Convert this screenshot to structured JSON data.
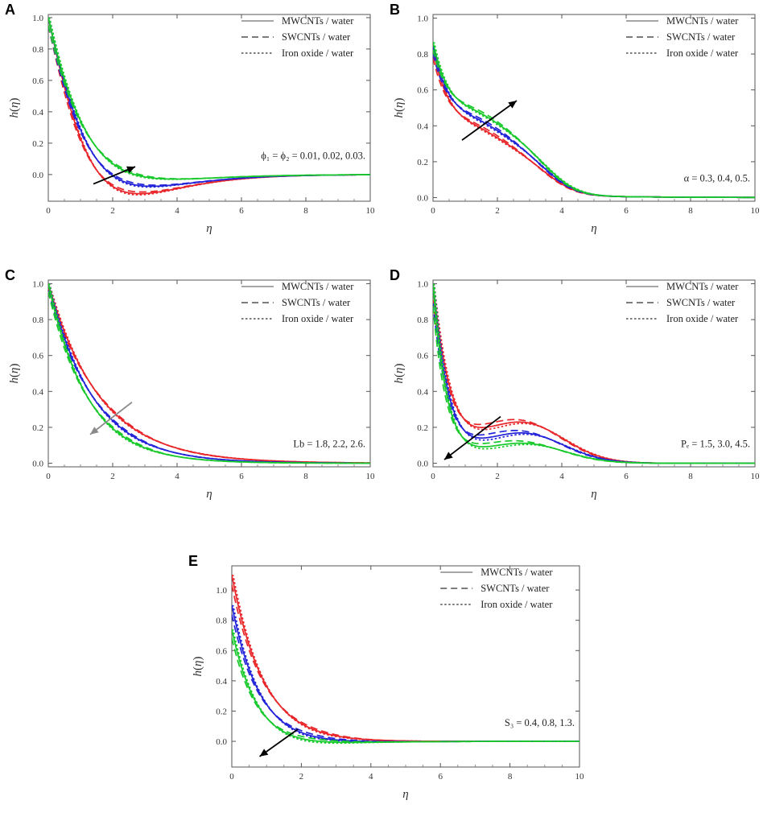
{
  "figure": {
    "legend": [
      "MWCNTs / water",
      "SWCNTs / water",
      "Iron oxide / water"
    ],
    "colors": {
      "red": "#e8262a",
      "blue": "#2323d8",
      "green": "#18c92b",
      "arrow_black": "#000000",
      "arrow_gray": "#8a8a8a"
    }
  },
  "chart_data": [
    {
      "panel": "A",
      "type": "line",
      "xlabel": "η",
      "ylabel": "h(η)",
      "ylabel_main": "h",
      "ylabel_open": "(",
      "ylabel_var": "η",
      "ylabel_close": ")",
      "xlim": [
        0,
        10
      ],
      "ylim": [
        -0.17,
        1.02
      ],
      "xticks": [
        "0",
        "2",
        "4",
        "6",
        "8",
        "10"
      ],
      "yticks": [
        "0.0",
        "0.2",
        "0.4",
        "0.6",
        "0.8",
        "1.0"
      ],
      "legend": [
        "MWCNTs / water",
        "SWCNTs / water",
        "Iron oxide / water"
      ],
      "annotation": "ϕ₁ = ϕ₂ = 0.01, 0.02, 0.03.",
      "arrow": {
        "from": [
          1.4,
          -0.06
        ],
        "to": [
          2.7,
          0.05
        ],
        "color": "#000000"
      },
      "model": {
        "type": "damped",
        "k": [
          1.05,
          1.0,
          0.95
        ],
        "a": [
          0.85,
          0.55,
          0.28
        ]
      },
      "series_colors": [
        "#e8262a",
        "#2323d8",
        "#18c92b"
      ]
    },
    {
      "panel": "B",
      "type": "line",
      "xlabel": "η",
      "ylabel": "h(η)",
      "ylabel_main": "h",
      "ylabel_open": "(",
      "ylabel_var": "η",
      "ylabel_close": ")",
      "xlim": [
        0,
        10
      ],
      "ylim": [
        -0.02,
        1.02
      ],
      "xticks": [
        "0",
        "2",
        "4",
        "6",
        "8",
        "10"
      ],
      "yticks": [
        "0.0",
        "0.2",
        "0.4",
        "0.6",
        "0.8",
        "1.0"
      ],
      "legend": [
        "MWCNTs / water",
        "SWCNTs / water",
        "Iron oxide / water"
      ],
      "annotation": "α = 0.3, 0.4, 0.5.",
      "arrow": {
        "from": [
          0.9,
          0.32
        ],
        "to": [
          2.6,
          0.54
        ],
        "color": "#000000"
      },
      "model": {
        "type": "hump",
        "base": [
          0.3,
          0.34,
          0.38
        ],
        "amp": [
          0.16,
          0.19,
          0.22
        ]
      },
      "series_colors": [
        "#e8262a",
        "#2323d8",
        "#18c92b"
      ]
    },
    {
      "panel": "C",
      "type": "line",
      "xlabel": "η",
      "ylabel": "h(η)",
      "ylabel_main": "h",
      "ylabel_open": "(",
      "ylabel_var": "η",
      "ylabel_close": ")",
      "xlim": [
        0,
        10
      ],
      "ylim": [
        -0.02,
        1.02
      ],
      "xticks": [
        "0",
        "2",
        "4",
        "6",
        "8",
        "10"
      ],
      "yticks": [
        "0.0",
        "0.2",
        "0.4",
        "0.6",
        "0.8",
        "1.0"
      ],
      "legend": [
        "MWCNTs / water",
        "SWCNTs / water",
        "Iron oxide / water"
      ],
      "annotation": "Lb = 1.8, 2.2, 2.6.",
      "arrow": {
        "from": [
          2.6,
          0.34
        ],
        "to": [
          1.3,
          0.16
        ],
        "color": "#8a8a8a"
      },
      "model": {
        "type": "decay",
        "k": [
          0.62,
          0.72,
          0.82
        ]
      },
      "series_colors": [
        "#e8262a",
        "#2323d8",
        "#18c92b"
      ]
    },
    {
      "panel": "D",
      "type": "line",
      "xlabel": "η",
      "ylabel": "h(η)",
      "ylabel_main": "h",
      "ylabel_open": "(",
      "ylabel_var": "η",
      "ylabel_close": ")",
      "xlim": [
        0,
        10
      ],
      "ylim": [
        -0.02,
        1.02
      ],
      "xticks": [
        "0",
        "2",
        "4",
        "6",
        "8",
        "10"
      ],
      "yticks": [
        "0.0",
        "0.2",
        "0.4",
        "0.6",
        "0.8",
        "1.0"
      ],
      "legend": [
        "MWCNTs / water",
        "SWCNTs / water",
        "Iron oxide / water"
      ],
      "annotation": "Pₑ = 1.5, 3.0, 4.5.",
      "arrow": {
        "from": [
          2.1,
          0.26
        ],
        "to": [
          0.35,
          0.02
        ],
        "color": "#000000"
      },
      "model": {
        "type": "dip",
        "k": [
          1.7,
          2.0,
          2.3
        ],
        "hump": [
          0.2,
          0.15,
          0.1
        ]
      },
      "series_colors": [
        "#e8262a",
        "#2323d8",
        "#18c92b"
      ]
    },
    {
      "panel": "E",
      "type": "line",
      "xlabel": "η",
      "ylabel": "h(η)",
      "ylabel_main": "h",
      "ylabel_open": "(",
      "ylabel_var": "η",
      "ylabel_close": ")",
      "xlim": [
        0,
        10
      ],
      "ylim": [
        -0.17,
        1.16
      ],
      "xticks": [
        "0",
        "2",
        "4",
        "6",
        "8",
        "10"
      ],
      "yticks": [
        "0.0",
        "0.2",
        "0.4",
        "0.6",
        "0.8",
        "1.0"
      ],
      "legend": [
        "MWCNTs / water",
        "SWCNTs / water",
        "Iron oxide / water"
      ],
      "annotation": "S₃ = 0.4, 0.8, 1.3.",
      "arrow": {
        "from": [
          1.9,
          0.08
        ],
        "to": [
          0.8,
          -0.1
        ],
        "color": "#000000"
      },
      "model": {
        "type": "overshoot",
        "h0": [
          1.1,
          0.9,
          0.74
        ],
        "k": [
          0.95,
          1.0,
          1.05
        ],
        "a": [
          0.32,
          0.58,
          0.88
        ]
      },
      "series_colors": [
        "#e8262a",
        "#2323d8",
        "#18c92b"
      ]
    }
  ]
}
